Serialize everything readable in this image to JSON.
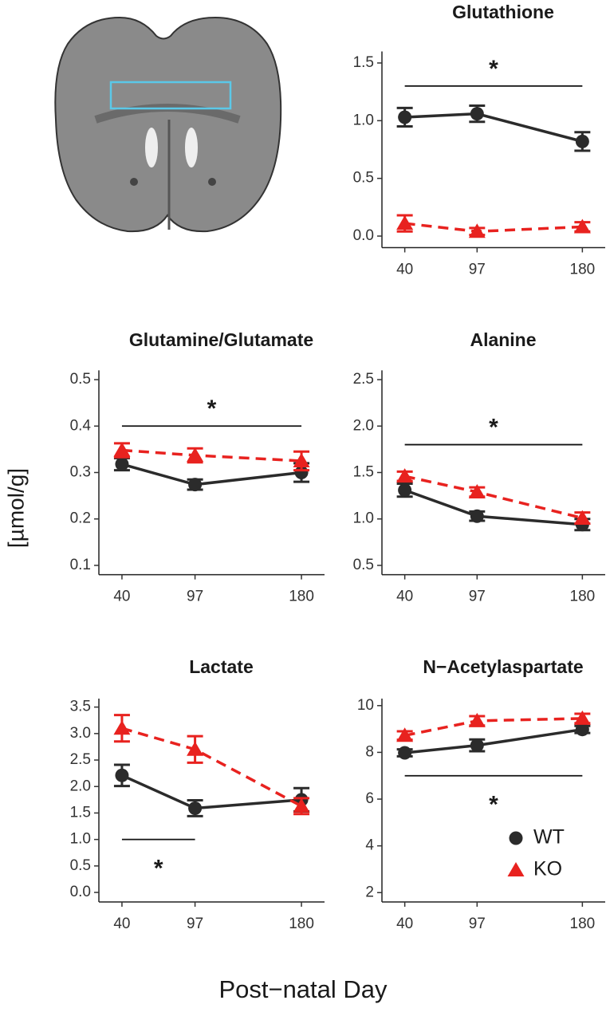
{
  "ylabel": "[µmol/g]",
  "xlabel": "Post−natal Day",
  "chart_data": [
    {
      "type": "line",
      "title": "Glutathione",
      "x": [
        40,
        97,
        180
      ],
      "xlim": [
        22,
        198
      ],
      "xticks": [
        40,
        97,
        180
      ],
      "ylim": [
        -0.1,
        1.6
      ],
      "yticks": [
        {
          "value": 0,
          "label": "0.0"
        },
        0.5,
        {
          "value": 1,
          "label": "1.0"
        },
        1.5
      ],
      "series": [
        {
          "color": "#2b2b2b",
          "marker": "circle",
          "dash": false,
          "values": [
            1.03,
            1.06,
            0.82
          ],
          "errors": [
            0.08,
            0.07,
            0.08
          ]
        },
        {
          "color": "#e8221f",
          "marker": "triangle",
          "dash": true,
          "values": [
            0.11,
            0.04,
            0.08
          ],
          "errors": [
            0.07,
            0.03,
            0.04
          ]
        }
      ],
      "significance": {
        "label": "*",
        "x": [
          40,
          180
        ],
        "y": 1.3,
        "label_side": "above"
      }
    },
    {
      "type": "line",
      "title": "Glutamine/Glutamate",
      "x": [
        40,
        97,
        180
      ],
      "xlim": [
        22,
        198
      ],
      "xticks": [
        40,
        97,
        180
      ],
      "ylim": [
        0.08,
        0.52
      ],
      "yticks": [
        0.1,
        0.2,
        0.3,
        0.4,
        0.5
      ],
      "series": [
        {
          "color": "#2b2b2b",
          "marker": "circle",
          "dash": false,
          "values": [
            0.318,
            0.274,
            0.3
          ],
          "errors": [
            0.013,
            0.011,
            0.02
          ]
        },
        {
          "color": "#e8221f",
          "marker": "triangle",
          "dash": true,
          "values": [
            0.348,
            0.337,
            0.325
          ],
          "errors": [
            0.015,
            0.015,
            0.02
          ]
        }
      ],
      "significance": {
        "label": "*",
        "x": [
          40,
          180
        ],
        "y": 0.4,
        "label_side": "above"
      }
    },
    {
      "type": "line",
      "title": "Alanine",
      "x": [
        40,
        97,
        180
      ],
      "xlim": [
        22,
        198
      ],
      "xticks": [
        40,
        97,
        180
      ],
      "ylim": [
        0.4,
        2.6
      ],
      "yticks": [
        0.5,
        {
          "value": 1,
          "label": "1.0"
        },
        1.5,
        {
          "value": 2,
          "label": "2.0"
        },
        2.5
      ],
      "series": [
        {
          "color": "#2b2b2b",
          "marker": "circle",
          "dash": false,
          "values": [
            1.31,
            1.03,
            0.94
          ],
          "errors": [
            0.07,
            0.05,
            0.06
          ]
        },
        {
          "color": "#e8221f",
          "marker": "triangle",
          "dash": true,
          "values": [
            1.46,
            1.29,
            1.01
          ],
          "errors": [
            0.05,
            0.05,
            0.06
          ]
        }
      ],
      "significance": {
        "label": "*",
        "x": [
          40,
          180
        ],
        "y": 1.8,
        "label_side": "above"
      }
    },
    {
      "type": "line",
      "title": "Lactate",
      "x": [
        40,
        97,
        180
      ],
      "xlim": [
        22,
        198
      ],
      "xticks": [
        40,
        97,
        180
      ],
      "ylim": [
        -0.18,
        3.66
      ],
      "yticks": [
        {
          "value": 0,
          "label": "0.0"
        },
        0.5,
        {
          "value": 1,
          "label": "1.0"
        },
        1.5,
        {
          "value": 2,
          "label": "2.0"
        },
        2.5,
        {
          "value": 3,
          "label": "3.0"
        },
        3.5
      ],
      "series": [
        {
          "color": "#2b2b2b",
          "marker": "circle",
          "dash": false,
          "values": [
            2.21,
            1.59,
            1.75
          ],
          "errors": [
            0.2,
            0.15,
            0.22
          ]
        },
        {
          "color": "#e8221f",
          "marker": "triangle",
          "dash": true,
          "values": [
            3.1,
            2.7,
            1.63
          ],
          "errors": [
            0.25,
            0.25,
            0.15
          ]
        }
      ],
      "significance": {
        "label": "*",
        "x": [
          40,
          97
        ],
        "y": 1,
        "label_side": "below"
      }
    },
    {
      "type": "line",
      "title": "N−Acetylaspartate",
      "x": [
        40,
        97,
        180
      ],
      "xlim": [
        22,
        198
      ],
      "xticks": [
        40,
        97,
        180
      ],
      "ylim": [
        1.6,
        10.3
      ],
      "yticks": [
        2,
        4,
        6,
        8,
        10
      ],
      "legend": "lower right",
      "series": [
        {
          "name": "WT",
          "color": "#2b2b2b",
          "marker": "circle",
          "dash": false,
          "values": [
            7.98,
            8.3,
            8.98
          ],
          "errors": [
            0.15,
            0.25,
            0.15
          ]
        },
        {
          "name": "KO",
          "color": "#e8221f",
          "marker": "triangle",
          "dash": true,
          "values": [
            8.72,
            9.35,
            9.45
          ],
          "errors": [
            0.18,
            0.2,
            0.2
          ]
        }
      ],
      "significance": {
        "label": "*",
        "x": [
          40,
          180
        ],
        "y": 7,
        "label_side": "below"
      }
    }
  ]
}
